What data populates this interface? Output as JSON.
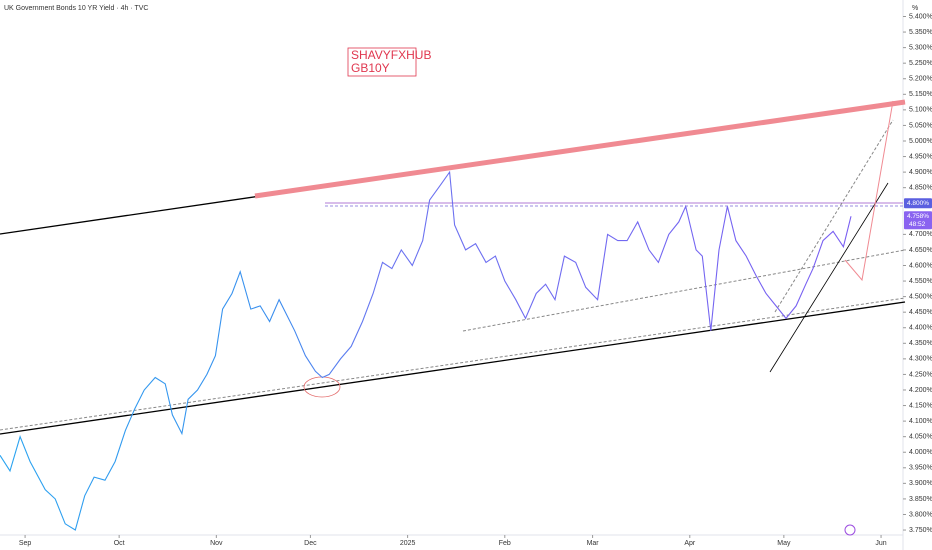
{
  "chart_data": {
    "type": "line",
    "title": "UK Government Bonds 10 YR Yield · 4h · TVC",
    "unit": "%",
    "watermark": [
      "SHAVYFXHUB",
      "GB10Y"
    ],
    "series": [
      {
        "name": "GB10Y",
        "color": "#6a74f0",
        "x": [
          -8,
          -4.8,
          -1.6,
          1.6,
          6.4,
          9.6,
          12.8,
          16,
          19,
          22,
          25.5,
          28.7,
          32,
          35,
          38,
          41.5,
          44.7,
          47,
          50,
          52,
          55,
          58,
          60.7,
          63,
          66,
          68.6,
          72,
          75,
          78,
          81,
          86,
          89.4,
          92.6,
          94.8,
          97,
          100.6,
          104,
          107.6,
          111,
          114,
          117,
          120,
          123.5,
          126.8,
          129,
          132.6,
          135.4,
          137,
          140.5,
          143.7,
          147,
          150,
          153,
          156.5,
          159.6,
          163,
          166,
          169,
          172,
          175.6,
          178.8,
          182.6,
          185.8,
          189,
          192,
          195.4,
          199,
          202,
          205.3,
          208.5,
          210.7,
          214,
          216,
          218.7,
          221.3,
          224,
          226.7,
          230,
          233,
          236.3,
          239.5,
          242.7,
          245.9,
          249,
          251.3,
          254.5,
          257.7,
          261,
          263.4
        ],
        "values": [
          3.99,
          3.94,
          4.05,
          3.97,
          3.88,
          3.85,
          3.77,
          3.75,
          3.86,
          3.92,
          3.91,
          3.97,
          4.07,
          4.14,
          4.2,
          4.24,
          4.22,
          4.12,
          4.06,
          4.17,
          4.2,
          4.25,
          4.31,
          4.46,
          4.51,
          4.58,
          4.46,
          4.47,
          4.42,
          4.49,
          4.39,
          4.31,
          4.26,
          4.24,
          4.25,
          4.3,
          4.34,
          4.42,
          4.51,
          4.61,
          4.59,
          4.65,
          4.6,
          4.68,
          4.81,
          4.86,
          4.9,
          4.73,
          4.65,
          4.67,
          4.61,
          4.63,
          4.55,
          4.49,
          4.43,
          4.51,
          4.54,
          4.49,
          4.63,
          4.61,
          4.53,
          4.49,
          4.7,
          4.68,
          4.68,
          4.74,
          4.65,
          4.61,
          4.7,
          4.74,
          4.79,
          4.65,
          4.63,
          4.39,
          4.65,
          4.79,
          4.68,
          4.63,
          4.57,
          4.51,
          4.47,
          4.43,
          4.47,
          4.54,
          4.59,
          4.68,
          4.71,
          4.66,
          4.758
        ]
      }
    ],
    "price_tag": {
      "value": 4.758,
      "label": "4.758%"
    },
    "countdown": "48:52",
    "level_tag": {
      "value": 4.8,
      "label": "4.800%"
    },
    "xlim": [
      -8,
      280
    ],
    "xticks": [
      {
        "value": 0,
        "label": "Sep"
      },
      {
        "value": 30,
        "label": "Oct"
      },
      {
        "value": 61,
        "label": "Nov"
      },
      {
        "value": 91,
        "label": "Dec"
      },
      {
        "value": 122,
        "label": "2025"
      },
      {
        "value": 153,
        "label": "Feb"
      },
      {
        "value": 181,
        "label": "Mar"
      },
      {
        "value": 212,
        "label": "Apr"
      },
      {
        "value": 242,
        "label": "May"
      },
      {
        "value": 273,
        "label": "Jun"
      }
    ],
    "ylim": [
      3.718,
      5.453
    ],
    "yticks": [
      {
        "value": 3.75,
        "label": "3.750%"
      },
      {
        "value": 3.8,
        "label": "3.800%"
      },
      {
        "value": 3.85,
        "label": "3.850%"
      },
      {
        "value": 3.9,
        "label": "3.900%"
      },
      {
        "value": 3.95,
        "label": "3.950%"
      },
      {
        "value": 4.0,
        "label": "4.000%"
      },
      {
        "value": 4.05,
        "label": "4.050%"
      },
      {
        "value": 4.1,
        "label": "4.100%"
      },
      {
        "value": 4.15,
        "label": "4.150%"
      },
      {
        "value": 4.2,
        "label": "4.200%"
      },
      {
        "value": 4.25,
        "label": "4.250%"
      },
      {
        "value": 4.3,
        "label": "4.300%"
      },
      {
        "value": 4.35,
        "label": "4.350%"
      },
      {
        "value": 4.4,
        "label": "4.400%"
      },
      {
        "value": 4.45,
        "label": "4.450%"
      },
      {
        "value": 4.5,
        "label": "4.500%"
      },
      {
        "value": 4.55,
        "label": "4.550%"
      },
      {
        "value": 4.6,
        "label": "4.600%"
      },
      {
        "value": 4.65,
        "label": "4.650%"
      },
      {
        "value": 4.7,
        "label": "4.700%"
      },
      {
        "value": 4.85,
        "label": "4.850%"
      },
      {
        "value": 4.9,
        "label": "4.900%"
      },
      {
        "value": 4.95,
        "label": "4.950%"
      },
      {
        "value": 5.0,
        "label": "5.000%"
      },
      {
        "value": 5.05,
        "label": "5.050%"
      },
      {
        "value": 5.1,
        "label": "5.100%"
      },
      {
        "value": 5.15,
        "label": "5.150%"
      },
      {
        "value": 5.2,
        "label": "5.200%"
      },
      {
        "value": 5.25,
        "label": "5.250%"
      },
      {
        "value": 5.3,
        "label": "5.300%"
      },
      {
        "value": 5.35,
        "label": "5.350%"
      },
      {
        "value": 5.4,
        "label": "5.400%"
      }
    ],
    "grid": false
  }
}
